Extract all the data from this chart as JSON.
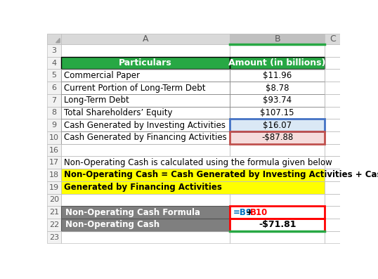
{
  "col_header_bg": "#27A844",
  "col_header_fg": "#FFFFFF",
  "col_header_row": [
    "Particulars",
    "Amount (in billions)"
  ],
  "data_rows": [
    [
      "Commercial Paper",
      "$11.96"
    ],
    [
      "Current Portion of Long-Term Debt",
      "$8.78"
    ],
    [
      "Long-Term Debt",
      "$93.74"
    ],
    [
      "Total Shareholders’ Equity",
      "$107.15"
    ],
    [
      "Cash Generated by Investing Activities",
      "$16.07"
    ],
    [
      "Cash Generated by Financing Activities",
      "-$87.88"
    ]
  ],
  "formula_rows": [
    {
      "label": "Non-Operating Cash Formula",
      "value": "=B9+B10",
      "row": "21"
    },
    {
      "label": "Non-Operating Cash",
      "value": "-$71.81",
      "row": "22"
    }
  ],
  "formula_row_bg": "#7F7F7F",
  "formula_row_fg": "#FFFFFF",
  "formula_result_bg": "#FFFFFF",
  "formula_result_fg": "#000000",
  "yellow_bg": "#FFFF00",
  "yellow_fg": "#000000",
  "yellow_text_line1": "Non-Operating Cash = Cash Generated by Investing Activities + Cash",
  "yellow_text_line2": "Generated by Financing Activities",
  "note_text": "Non-Operating Cash is calculated using the formula given below",
  "row_bg_investing": "#DAE8F5",
  "row_bg_financing": "#F5DCDC",
  "grid_color": "#C0C0C0",
  "bg_color": "#FFFFFF",
  "col_a_header_bg": "#D9D9D9",
  "col_b_header_bg": "#C0C0C0",
  "corner_bg": "#D9D9D9",
  "row_num_bg": "#F2F2F2",
  "row_num_fg": "#595959",
  "blue_border": "#4472C4",
  "red_border": "#C0504D",
  "bright_red_border": "#FF0000",
  "green_line": "#27A844",
  "formula_blue": "#0070C0",
  "formula_red": "#FF0000"
}
